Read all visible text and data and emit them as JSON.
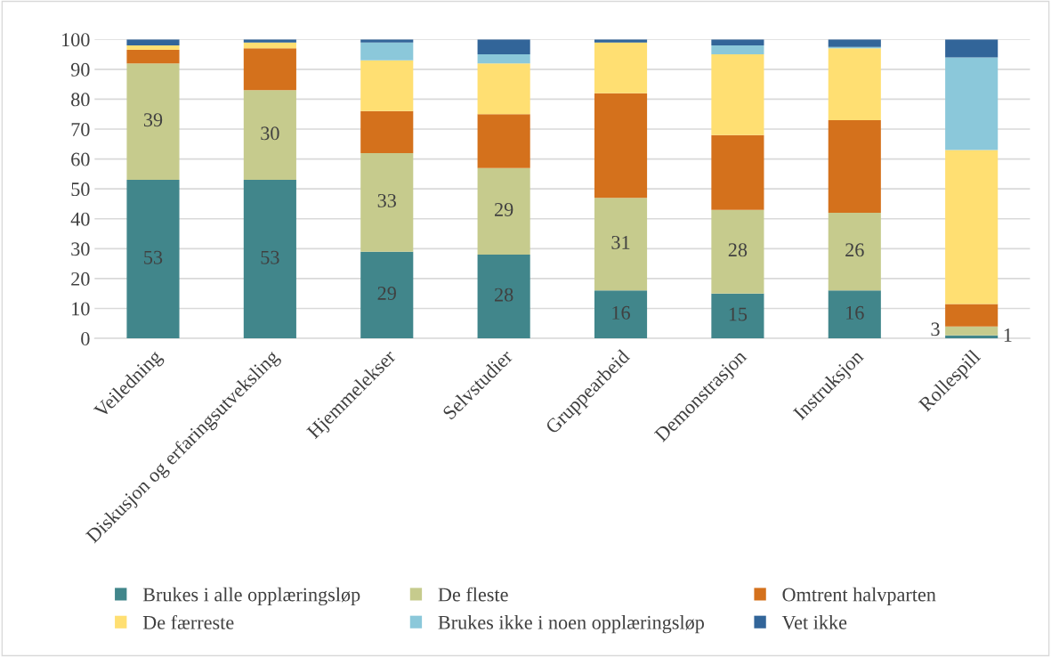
{
  "chart_data": {
    "type": "bar",
    "stacked": true,
    "categories": [
      "Veiledning",
      "Diskusjon og erfaringsutveksling",
      "Hjemmelekser",
      "Selvstudier",
      "Gruppearbeid",
      "Demonstrasjon",
      "Instruksjon",
      "Rollespill"
    ],
    "series": [
      {
        "name": "Brukes i alle opplæringsløp",
        "color": "#41868b",
        "values": [
          53,
          53,
          29,
          28,
          16,
          15,
          16,
          1
        ],
        "value_labels": [
          "53",
          "53",
          "29",
          "28",
          "16",
          "15",
          "16",
          "1"
        ]
      },
      {
        "name": "De fleste",
        "color": "#c6cb8d",
        "values": [
          39,
          30,
          33,
          29,
          31,
          28,
          26,
          3
        ],
        "value_labels": [
          "39",
          "30",
          "33",
          "29",
          "31",
          "28",
          "26",
          "3"
        ]
      },
      {
        "name": "Omtrent halvparten",
        "color": "#d4711c",
        "values": [
          4.5,
          14,
          14,
          18,
          35,
          25,
          31,
          7.5
        ]
      },
      {
        "name": "De færreste",
        "color": "#ffdf72",
        "values": [
          1.5,
          2,
          17,
          17,
          17,
          27,
          24,
          51.5
        ]
      },
      {
        "name": "Brukes ikke i noen opplæringsløp",
        "color": "#8bc8da",
        "values": [
          0,
          0,
          6,
          3,
          0,
          3,
          0.5,
          31
        ]
      },
      {
        "name": "Vet ikke",
        "color": "#326599",
        "values": [
          2,
          1,
          1,
          5,
          1,
          2,
          2.5,
          6
        ]
      }
    ],
    "ylim": [
      0,
      100
    ],
    "yticks": [
      0,
      10,
      20,
      30,
      40,
      50,
      60,
      70,
      80,
      90,
      100
    ],
    "grid": "y",
    "legend": "bottom"
  }
}
